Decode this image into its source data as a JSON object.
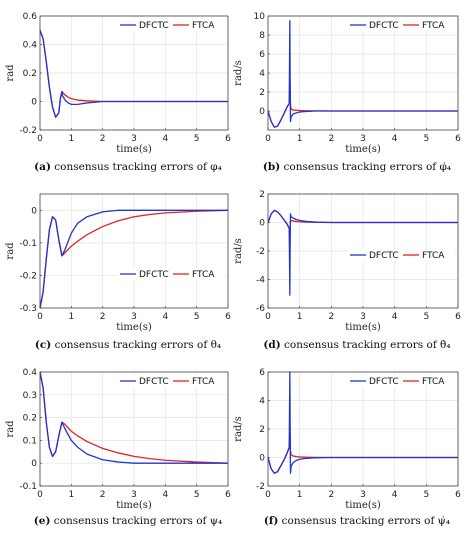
{
  "series_colors": {
    "DFCTC": "#1f35d1",
    "FTCA": "#e32222"
  },
  "chart_data": [
    {
      "id": "a",
      "type": "line",
      "caption_label": "(a)",
      "caption_text": "consensus tracking errors of φ₄",
      "xlabel": "time(s)",
      "ylabel": "rad",
      "xlim": [
        0,
        6
      ],
      "ylim": [
        -0.2,
        0.6
      ],
      "xticks": [
        "0",
        "1",
        "2",
        "3",
        "4",
        "5",
        "6"
      ],
      "yticks": [
        "-0.2",
        "0",
        "0.2",
        "0.4",
        "0.6"
      ],
      "grid": true,
      "legend_position": "top-right",
      "series": [
        {
          "name": "DFCTC",
          "x": [
            0,
            0.1,
            0.2,
            0.3,
            0.4,
            0.5,
            0.6,
            0.65,
            0.7,
            0.72,
            0.8,
            0.9,
            1.0,
            1.2,
            1.5,
            2,
            3,
            4,
            5,
            6
          ],
          "y": [
            0.5,
            0.44,
            0.28,
            0.1,
            -0.04,
            -0.11,
            -0.08,
            0.02,
            0.07,
            0.04,
            0.01,
            -0.01,
            -0.02,
            -0.02,
            -0.01,
            0,
            0,
            0,
            0,
            0
          ]
        },
        {
          "name": "FTCA",
          "x": [
            0,
            0.1,
            0.2,
            0.3,
            0.4,
            0.5,
            0.6,
            0.65,
            0.7,
            0.72,
            0.8,
            0.9,
            1.0,
            1.2,
            1.5,
            2,
            2.5,
            3,
            4,
            5,
            6
          ],
          "y": [
            0.5,
            0.44,
            0.28,
            0.1,
            -0.04,
            -0.11,
            -0.08,
            0.02,
            0.07,
            0.065,
            0.045,
            0.03,
            0.02,
            0.01,
            0.005,
            0,
            0,
            0,
            0,
            0,
            0
          ]
        }
      ]
    },
    {
      "id": "b",
      "type": "line",
      "caption_label": "(b)",
      "caption_text": "consensus tracking errors of φ̇₄",
      "xlabel": "time(s)",
      "ylabel": "rad/s",
      "xlim": [
        0,
        6
      ],
      "ylim": [
        -2,
        10
      ],
      "xticks": [
        "0",
        "1",
        "2",
        "3",
        "4",
        "5",
        "6"
      ],
      "yticks": [
        "0",
        "2",
        "4",
        "6",
        "8",
        "10"
      ],
      "grid": true,
      "legend_position": "top-right",
      "series": [
        {
          "name": "DFCTC",
          "x": [
            0,
            0.1,
            0.2,
            0.3,
            0.4,
            0.5,
            0.6,
            0.67,
            0.69,
            0.7,
            0.71,
            0.73,
            0.8,
            0.9,
            1.0,
            1.2,
            1.5,
            2,
            3,
            4,
            5,
            6
          ],
          "y": [
            0,
            -1.1,
            -1.7,
            -1.6,
            -1.0,
            -0.3,
            0.4,
            0.8,
            9.5,
            3,
            -1.1,
            -0.6,
            -0.3,
            -0.2,
            -0.1,
            -0.05,
            0,
            0,
            0,
            0,
            0,
            0
          ]
        },
        {
          "name": "FTCA",
          "x": [
            0,
            0.1,
            0.2,
            0.3,
            0.4,
            0.5,
            0.6,
            0.67,
            0.69,
            0.7,
            0.71,
            0.73,
            0.8,
            0.9,
            1.0,
            1.2,
            1.5,
            2,
            3,
            4,
            5,
            6
          ],
          "y": [
            0,
            -1.1,
            -1.7,
            -1.6,
            -1.0,
            -0.3,
            0.4,
            0.8,
            3.2,
            2.0,
            0.7,
            0.2,
            0.1,
            0.08,
            0.05,
            0.03,
            0.01,
            0,
            0,
            0,
            0,
            0
          ]
        }
      ]
    },
    {
      "id": "c",
      "type": "line",
      "caption_label": "(c)",
      "caption_text": "consensus tracking errors of θ₄",
      "xlabel": "time(s)",
      "ylabel": "rad",
      "xlim": [
        0,
        6
      ],
      "ylim": [
        -0.3,
        0.05
      ],
      "xticks": [
        "0",
        "1",
        "2",
        "3",
        "4",
        "5",
        "6"
      ],
      "yticks": [
        "-0.3",
        "-0.2",
        "-0.1",
        "0"
      ],
      "grid": true,
      "legend_position": "bottom-right",
      "series": [
        {
          "name": "DFCTC",
          "x": [
            0,
            0.1,
            0.2,
            0.3,
            0.4,
            0.5,
            0.6,
            0.7,
            0.8,
            1.0,
            1.2,
            1.5,
            2,
            2.5,
            3,
            4,
            5,
            6
          ],
          "y": [
            -0.3,
            -0.25,
            -0.15,
            -0.06,
            -0.02,
            -0.03,
            -0.09,
            -0.14,
            -0.12,
            -0.07,
            -0.04,
            -0.02,
            -0.005,
            0,
            0,
            0,
            0,
            0
          ]
        },
        {
          "name": "FTCA",
          "x": [
            0,
            0.1,
            0.2,
            0.3,
            0.4,
            0.5,
            0.6,
            0.7,
            0.8,
            1.0,
            1.2,
            1.5,
            2,
            2.5,
            3,
            3.5,
            4,
            5,
            6
          ],
          "y": [
            -0.3,
            -0.25,
            -0.15,
            -0.06,
            -0.02,
            -0.03,
            -0.09,
            -0.14,
            -0.13,
            -0.11,
            -0.095,
            -0.075,
            -0.05,
            -0.032,
            -0.02,
            -0.013,
            -0.008,
            -0.003,
            0
          ]
        }
      ]
    },
    {
      "id": "d",
      "type": "line",
      "caption_label": "(d)",
      "caption_text": "consensus tracking errors of θ̇₄",
      "xlabel": "time(s)",
      "ylabel": "rad/s",
      "xlim": [
        0,
        6
      ],
      "ylim": [
        -6,
        2
      ],
      "xticks": [
        "0",
        "1",
        "2",
        "3",
        "4",
        "5",
        "6"
      ],
      "yticks": [
        "-6",
        "-4",
        "-2",
        "0",
        "2"
      ],
      "grid": true,
      "legend_position": "center-right",
      "series": [
        {
          "name": "DFCTC",
          "x": [
            0,
            0.1,
            0.2,
            0.3,
            0.4,
            0.5,
            0.6,
            0.67,
            0.69,
            0.7,
            0.71,
            0.73,
            0.8,
            0.9,
            1.0,
            1.2,
            1.5,
            2,
            3,
            4,
            5,
            6
          ],
          "y": [
            0,
            0.6,
            0.85,
            0.75,
            0.5,
            0.2,
            -0.1,
            -0.4,
            -5.1,
            -1.0,
            0.6,
            0.4,
            0.3,
            0.2,
            0.15,
            0.08,
            0.03,
            0,
            0,
            0,
            0,
            0
          ]
        },
        {
          "name": "FTCA",
          "x": [
            0,
            0.1,
            0.2,
            0.3,
            0.4,
            0.5,
            0.6,
            0.67,
            0.69,
            0.7,
            0.71,
            0.73,
            0.8,
            0.9,
            1.0,
            1.2,
            1.5,
            2,
            3,
            4,
            5,
            6
          ],
          "y": [
            0,
            0.6,
            0.85,
            0.75,
            0.5,
            0.2,
            -0.1,
            -0.4,
            -1.8,
            -0.9,
            0.1,
            0.15,
            0.1,
            0.07,
            0.05,
            0.03,
            0.01,
            0,
            0,
            0,
            0,
            0
          ]
        }
      ]
    },
    {
      "id": "e",
      "type": "line",
      "caption_label": "(e)",
      "caption_text": "consensus tracking errors of ψ₄",
      "xlabel": "time(s)",
      "ylabel": "rad",
      "xlim": [
        0,
        6
      ],
      "ylim": [
        -0.1,
        0.4
      ],
      "xticks": [
        "0",
        "1",
        "2",
        "3",
        "4",
        "5",
        "6"
      ],
      "yticks": [
        "-0.1",
        "0",
        "0.1",
        "0.2",
        "0.3",
        "0.4"
      ],
      "grid": true,
      "legend_position": "top-right",
      "series": [
        {
          "name": "DFCTC",
          "x": [
            0,
            0.1,
            0.2,
            0.3,
            0.4,
            0.5,
            0.6,
            0.7,
            0.8,
            1.0,
            1.2,
            1.5,
            2,
            2.5,
            3,
            4,
            5,
            6
          ],
          "y": [
            0.4,
            0.33,
            0.18,
            0.07,
            0.03,
            0.05,
            0.12,
            0.18,
            0.15,
            0.1,
            0.07,
            0.04,
            0.015,
            0.005,
            0,
            0,
            0,
            0
          ]
        },
        {
          "name": "FTCA",
          "x": [
            0,
            0.1,
            0.2,
            0.3,
            0.4,
            0.5,
            0.6,
            0.7,
            0.8,
            1.0,
            1.2,
            1.5,
            2,
            2.5,
            3,
            3.5,
            4,
            5,
            6
          ],
          "y": [
            0.4,
            0.33,
            0.18,
            0.07,
            0.03,
            0.05,
            0.12,
            0.18,
            0.17,
            0.14,
            0.12,
            0.095,
            0.065,
            0.045,
            0.03,
            0.02,
            0.013,
            0.005,
            0
          ]
        }
      ]
    },
    {
      "id": "f",
      "type": "line",
      "caption_label": "(f)",
      "caption_text": "consensus tracking errors of ψ̇₄",
      "xlabel": "time(s)",
      "ylabel": "rad/s",
      "xlim": [
        0,
        6
      ],
      "ylim": [
        -2,
        6
      ],
      "xticks": [
        "0",
        "1",
        "2",
        "3",
        "4",
        "5",
        "6"
      ],
      "yticks": [
        "-2",
        "0",
        "2",
        "4",
        "6"
      ],
      "grid": true,
      "legend_position": "top-right",
      "series": [
        {
          "name": "DFCTC",
          "x": [
            0,
            0.1,
            0.2,
            0.3,
            0.4,
            0.5,
            0.6,
            0.67,
            0.69,
            0.7,
            0.71,
            0.73,
            0.8,
            0.9,
            1.0,
            1.2,
            1.5,
            2,
            3,
            4,
            5,
            6
          ],
          "y": [
            0,
            -0.8,
            -1.1,
            -1.0,
            -0.6,
            -0.2,
            0.3,
            0.7,
            6.0,
            2.0,
            -1.1,
            -0.6,
            -0.35,
            -0.2,
            -0.12,
            -0.06,
            -0.02,
            0,
            0,
            0,
            0,
            0
          ]
        },
        {
          "name": "FTCA",
          "x": [
            0,
            0.1,
            0.2,
            0.3,
            0.4,
            0.5,
            0.6,
            0.67,
            0.69,
            0.7,
            0.71,
            0.73,
            0.8,
            0.9,
            1.0,
            1.2,
            1.5,
            2,
            3,
            4,
            5,
            6
          ],
          "y": [
            0,
            -0.8,
            -1.1,
            -1.0,
            -0.6,
            -0.2,
            0.3,
            0.7,
            2.0,
            1.4,
            0.5,
            0.2,
            0.1,
            0.06,
            0.04,
            0.02,
            0.01,
            0,
            0,
            0,
            0,
            0
          ]
        }
      ]
    }
  ]
}
